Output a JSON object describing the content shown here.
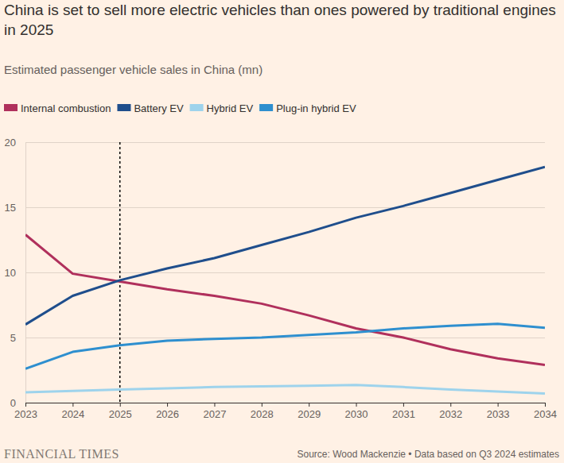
{
  "chart_data": {
    "type": "line",
    "title": "China is set to sell more electric vehicles than ones powered by traditional engines in 2025",
    "subtitle": "Estimated passenger vehicle sales in China (mn)",
    "source": "Source: Wood Mackenzie • Data based on Q3 2024 estimates",
    "logo": "FINANCIAL TIMES",
    "x": [
      2023,
      2024,
      2025,
      2026,
      2027,
      2028,
      2029,
      2030,
      2031,
      2032,
      2033,
      2034
    ],
    "xlim": [
      2023,
      2034
    ],
    "xticks": [
      2023,
      2024,
      2025,
      2026,
      2027,
      2028,
      2029,
      2030,
      2031,
      2032,
      2033,
      2034
    ],
    "ylim": [
      0,
      20
    ],
    "yticks": [
      0,
      5,
      10,
      15,
      20
    ],
    "grid": true,
    "legend": "top-left",
    "vline": 2025,
    "series": [
      {
        "name": "Internal combustion",
        "color": "#b0305c",
        "values": [
          12.9,
          9.9,
          9.3,
          8.7,
          8.2,
          7.6,
          6.7,
          5.7,
          5.0,
          4.1,
          3.4,
          2.9
        ]
      },
      {
        "name": "Battery EV",
        "color": "#1f4e8c",
        "values": [
          6.0,
          8.2,
          9.4,
          10.3,
          11.1,
          12.1,
          13.1,
          14.2,
          15.1,
          16.1,
          17.1,
          18.1
        ]
      },
      {
        "name": "Hybrid EV",
        "color": "#9ed3ec",
        "values": [
          0.8,
          0.9,
          1.0,
          1.1,
          1.2,
          1.25,
          1.3,
          1.35,
          1.2,
          1.0,
          0.85,
          0.7
        ]
      },
      {
        "name": "Plug-in hybrid EV",
        "color": "#2e8fcf",
        "values": [
          2.6,
          3.9,
          4.4,
          4.75,
          4.9,
          5.0,
          5.2,
          5.4,
          5.7,
          5.9,
          6.05,
          5.75
        ]
      }
    ]
  }
}
